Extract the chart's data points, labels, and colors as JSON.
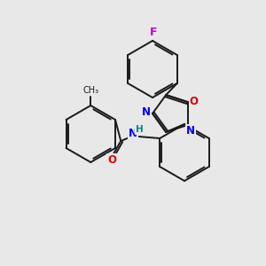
{
  "background_color": "#e8e8e8",
  "bond_color": "#1a1a1a",
  "atom_colors": {
    "F": "#cc00cc",
    "N": "#0000ee",
    "O": "#dd0000",
    "H": "#008888"
  },
  "figsize": [
    3.0,
    3.0
  ],
  "dpi": 100
}
